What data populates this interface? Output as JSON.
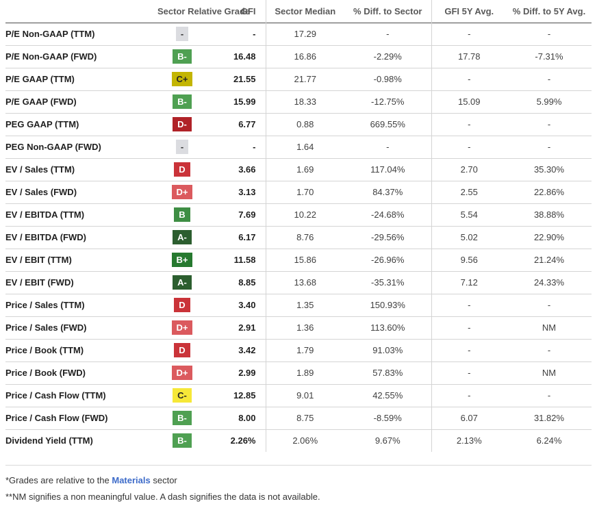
{
  "table": {
    "headers": [
      "",
      "Sector Relative Grade",
      "GFI",
      "Sector Median",
      "% Diff. to Sector",
      "GFI 5Y Avg.",
      "% Diff. to 5Y Avg."
    ],
    "rows": [
      {
        "metric": "P/E Non-GAAP (TTM)",
        "grade": "-",
        "gfi": "-",
        "sector_median": "17.29",
        "diff_to_sector": "-",
        "gfi_5y_avg": "-",
        "diff_to_5y_avg": "-"
      },
      {
        "metric": "P/E Non-GAAP (FWD)",
        "grade": "B-",
        "gfi": "16.48",
        "sector_median": "16.86",
        "diff_to_sector": "-2.29%",
        "gfi_5y_avg": "17.78",
        "diff_to_5y_avg": "-7.31%"
      },
      {
        "metric": "P/E GAAP (TTM)",
        "grade": "C+",
        "gfi": "21.55",
        "sector_median": "21.77",
        "diff_to_sector": "-0.98%",
        "gfi_5y_avg": "-",
        "diff_to_5y_avg": "-"
      },
      {
        "metric": "P/E GAAP (FWD)",
        "grade": "B-",
        "gfi": "15.99",
        "sector_median": "18.33",
        "diff_to_sector": "-12.75%",
        "gfi_5y_avg": "15.09",
        "diff_to_5y_avg": "5.99%"
      },
      {
        "metric": "PEG GAAP (TTM)",
        "grade": "D-",
        "gfi": "6.77",
        "sector_median": "0.88",
        "diff_to_sector": "669.55%",
        "gfi_5y_avg": "-",
        "diff_to_5y_avg": "-"
      },
      {
        "metric": "PEG Non-GAAP (FWD)",
        "grade": "-",
        "gfi": "-",
        "sector_median": "1.64",
        "diff_to_sector": "-",
        "gfi_5y_avg": "-",
        "diff_to_5y_avg": "-"
      },
      {
        "metric": "EV / Sales (TTM)",
        "grade": "D",
        "gfi": "3.66",
        "sector_median": "1.69",
        "diff_to_sector": "117.04%",
        "gfi_5y_avg": "2.70",
        "diff_to_5y_avg": "35.30%"
      },
      {
        "metric": "EV / Sales (FWD)",
        "grade": "D+",
        "gfi": "3.13",
        "sector_median": "1.70",
        "diff_to_sector": "84.37%",
        "gfi_5y_avg": "2.55",
        "diff_to_5y_avg": "22.86%"
      },
      {
        "metric": "EV / EBITDA (TTM)",
        "grade": "B",
        "gfi": "7.69",
        "sector_median": "10.22",
        "diff_to_sector": "-24.68%",
        "gfi_5y_avg": "5.54",
        "diff_to_5y_avg": "38.88%"
      },
      {
        "metric": "EV / EBITDA (FWD)",
        "grade": "A-",
        "gfi": "6.17",
        "sector_median": "8.76",
        "diff_to_sector": "-29.56%",
        "gfi_5y_avg": "5.02",
        "diff_to_5y_avg": "22.90%"
      },
      {
        "metric": "EV / EBIT (TTM)",
        "grade": "B+",
        "gfi": "11.58",
        "sector_median": "15.86",
        "diff_to_sector": "-26.96%",
        "gfi_5y_avg": "9.56",
        "diff_to_5y_avg": "21.24%"
      },
      {
        "metric": "EV / EBIT (FWD)",
        "grade": "A-",
        "gfi": "8.85",
        "sector_median": "13.68",
        "diff_to_sector": "-35.31%",
        "gfi_5y_avg": "7.12",
        "diff_to_5y_avg": "24.33%"
      },
      {
        "metric": "Price / Sales (TTM)",
        "grade": "D",
        "gfi": "3.40",
        "sector_median": "1.35",
        "diff_to_sector": "150.93%",
        "gfi_5y_avg": "-",
        "diff_to_5y_avg": "-"
      },
      {
        "metric": "Price / Sales (FWD)",
        "grade": "D+",
        "gfi": "2.91",
        "sector_median": "1.36",
        "diff_to_sector": "113.60%",
        "gfi_5y_avg": "-",
        "diff_to_5y_avg": "NM"
      },
      {
        "metric": "Price / Book (TTM)",
        "grade": "D",
        "gfi": "3.42",
        "sector_median": "1.79",
        "diff_to_sector": "91.03%",
        "gfi_5y_avg": "-",
        "diff_to_5y_avg": "-"
      },
      {
        "metric": "Price / Book (FWD)",
        "grade": "D+",
        "gfi": "2.99",
        "sector_median": "1.89",
        "diff_to_sector": "57.83%",
        "gfi_5y_avg": "-",
        "diff_to_5y_avg": "NM"
      },
      {
        "metric": "Price / Cash Flow (TTM)",
        "grade": "C-",
        "gfi": "12.85",
        "sector_median": "9.01",
        "diff_to_sector": "42.55%",
        "gfi_5y_avg": "-",
        "diff_to_5y_avg": "-"
      },
      {
        "metric": "Price / Cash Flow (FWD)",
        "grade": "B-",
        "gfi": "8.00",
        "sector_median": "8.75",
        "diff_to_sector": "-8.59%",
        "gfi_5y_avg": "6.07",
        "diff_to_5y_avg": "31.82%"
      },
      {
        "metric": "Dividend Yield (TTM)",
        "grade": "B-",
        "gfi": "2.26%",
        "sector_median": "2.06%",
        "diff_to_sector": "9.67%",
        "gfi_5y_avg": "2.13%",
        "diff_to_5y_avg": "6.24%"
      }
    ]
  },
  "grade_colors": {
    "A-": {
      "bg": "#2c5e2f",
      "fg": "#ffffff"
    },
    "B+": {
      "bg": "#26792f",
      "fg": "#ffffff"
    },
    "B": {
      "bg": "#3e8e44",
      "fg": "#ffffff"
    },
    "B-": {
      "bg": "#4fa052",
      "fg": "#ffffff"
    },
    "C+": {
      "bg": "#c3b502",
      "fg": "#262626"
    },
    "C-": {
      "bg": "#f6e838",
      "fg": "#262626"
    },
    "D+": {
      "bg": "#db5a5e",
      "fg": "#ffffff"
    },
    "D": {
      "bg": "#ca3339",
      "fg": "#ffffff"
    },
    "D-": {
      "bg": "#b02228",
      "fg": "#ffffff"
    },
    "-": {
      "bg": "#dbdce0",
      "fg": "#333333"
    }
  },
  "footnotes": {
    "line1_prefix": "*Grades are relative to the ",
    "sector_link": "Materials",
    "line1_suffix": " sector",
    "line2": "**NM signifies a non meaningful value. A dash signifies the data is not available.",
    "link_color": "#3d6bc9"
  }
}
